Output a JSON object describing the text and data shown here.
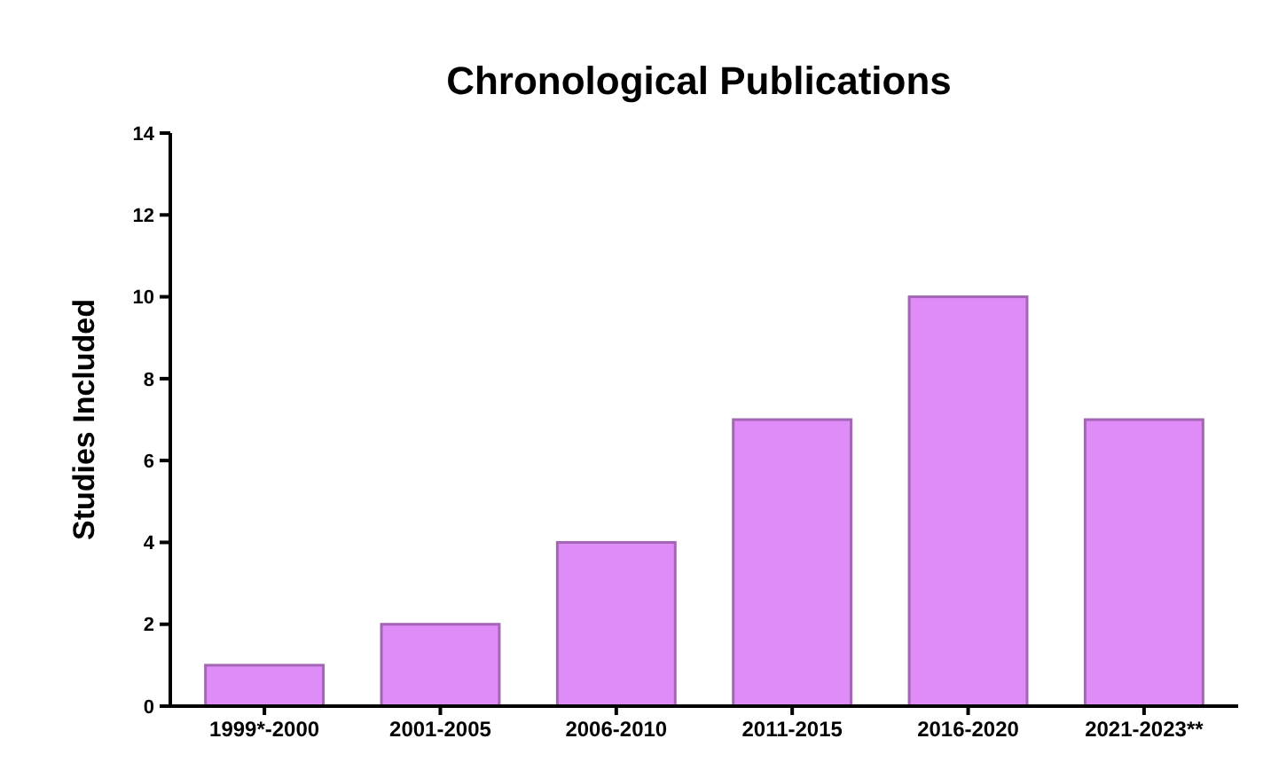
{
  "chart_data": {
    "type": "bar",
    "title": "Chronological Publications",
    "ylabel": "Studies Included",
    "categories": [
      "1999*-2000",
      "2001-2005",
      "2006-2010",
      "2011-2015",
      "2016-2020",
      "2021-2023**"
    ],
    "values": [
      1,
      2,
      4,
      7,
      10,
      7
    ],
    "color": "#e08cf8",
    "ylim": [
      0,
      14
    ],
    "yticks": [
      0,
      2,
      4,
      6,
      8,
      10,
      12,
      14
    ],
    "grid": false
  }
}
